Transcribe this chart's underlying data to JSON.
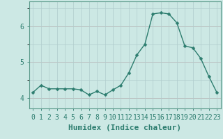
{
  "x": [
    0,
    1,
    2,
    3,
    4,
    5,
    6,
    7,
    8,
    9,
    10,
    11,
    12,
    13,
    14,
    15,
    16,
    17,
    18,
    19,
    20,
    21,
    22,
    23
  ],
  "y": [
    4.15,
    4.35,
    4.25,
    4.25,
    4.25,
    4.25,
    4.22,
    4.08,
    4.18,
    4.08,
    4.22,
    4.35,
    4.7,
    5.2,
    5.5,
    6.35,
    6.38,
    6.35,
    6.1,
    5.45,
    5.4,
    5.1,
    4.6,
    4.15
  ],
  "line_color": "#2d7d6f",
  "marker": "D",
  "marker_size": 2.5,
  "bg_color": "#cce8e4",
  "grid_color": "#b0cccc",
  "red_line_color": "#cc9999",
  "xlabel": "Humidex (Indice chaleur)",
  "ylim": [
    3.7,
    6.7
  ],
  "yticks": [
    4,
    5,
    6
  ],
  "xlim": [
    -0.5,
    23.5
  ],
  "xlabel_fontsize": 8,
  "tick_fontsize": 7,
  "line_width": 1.0
}
